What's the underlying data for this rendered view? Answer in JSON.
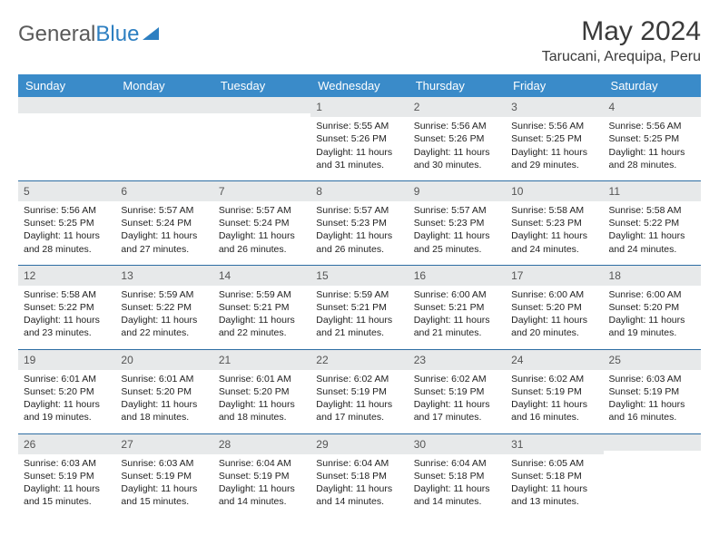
{
  "logo": {
    "part1": "General",
    "part2": "Blue"
  },
  "header": {
    "month": "May 2024",
    "location": "Tarucani, Arequipa, Peru"
  },
  "style": {
    "header_bg": "#3a8bc9",
    "header_text": "#ffffff",
    "daynum_bg": "#e7e9ea",
    "row_border": "#2d6da3",
    "body_bg": "#ffffff",
    "text_color": "#222222",
    "title_color": "#3a3a3a",
    "logo_gray": "#5a5a5a",
    "logo_blue": "#2d7fc1",
    "month_fontsize": 30,
    "location_fontsize": 16,
    "header_fontsize": 13,
    "cell_fontsize": 10.5
  },
  "weekdays": [
    "Sunday",
    "Monday",
    "Tuesday",
    "Wednesday",
    "Thursday",
    "Friday",
    "Saturday"
  ],
  "weeks": [
    [
      {
        "day": "",
        "lines": []
      },
      {
        "day": "",
        "lines": []
      },
      {
        "day": "",
        "lines": []
      },
      {
        "day": "1",
        "lines": [
          "Sunrise: 5:55 AM",
          "Sunset: 5:26 PM",
          "Daylight: 11 hours and 31 minutes."
        ]
      },
      {
        "day": "2",
        "lines": [
          "Sunrise: 5:56 AM",
          "Sunset: 5:26 PM",
          "Daylight: 11 hours and 30 minutes."
        ]
      },
      {
        "day": "3",
        "lines": [
          "Sunrise: 5:56 AM",
          "Sunset: 5:25 PM",
          "Daylight: 11 hours and 29 minutes."
        ]
      },
      {
        "day": "4",
        "lines": [
          "Sunrise: 5:56 AM",
          "Sunset: 5:25 PM",
          "Daylight: 11 hours and 28 minutes."
        ]
      }
    ],
    [
      {
        "day": "5",
        "lines": [
          "Sunrise: 5:56 AM",
          "Sunset: 5:25 PM",
          "Daylight: 11 hours and 28 minutes."
        ]
      },
      {
        "day": "6",
        "lines": [
          "Sunrise: 5:57 AM",
          "Sunset: 5:24 PM",
          "Daylight: 11 hours and 27 minutes."
        ]
      },
      {
        "day": "7",
        "lines": [
          "Sunrise: 5:57 AM",
          "Sunset: 5:24 PM",
          "Daylight: 11 hours and 26 minutes."
        ]
      },
      {
        "day": "8",
        "lines": [
          "Sunrise: 5:57 AM",
          "Sunset: 5:23 PM",
          "Daylight: 11 hours and 26 minutes."
        ]
      },
      {
        "day": "9",
        "lines": [
          "Sunrise: 5:57 AM",
          "Sunset: 5:23 PM",
          "Daylight: 11 hours and 25 minutes."
        ]
      },
      {
        "day": "10",
        "lines": [
          "Sunrise: 5:58 AM",
          "Sunset: 5:23 PM",
          "Daylight: 11 hours and 24 minutes."
        ]
      },
      {
        "day": "11",
        "lines": [
          "Sunrise: 5:58 AM",
          "Sunset: 5:22 PM",
          "Daylight: 11 hours and 24 minutes."
        ]
      }
    ],
    [
      {
        "day": "12",
        "lines": [
          "Sunrise: 5:58 AM",
          "Sunset: 5:22 PM",
          "Daylight: 11 hours and 23 minutes."
        ]
      },
      {
        "day": "13",
        "lines": [
          "Sunrise: 5:59 AM",
          "Sunset: 5:22 PM",
          "Daylight: 11 hours and 22 minutes."
        ]
      },
      {
        "day": "14",
        "lines": [
          "Sunrise: 5:59 AM",
          "Sunset: 5:21 PM",
          "Daylight: 11 hours and 22 minutes."
        ]
      },
      {
        "day": "15",
        "lines": [
          "Sunrise: 5:59 AM",
          "Sunset: 5:21 PM",
          "Daylight: 11 hours and 21 minutes."
        ]
      },
      {
        "day": "16",
        "lines": [
          "Sunrise: 6:00 AM",
          "Sunset: 5:21 PM",
          "Daylight: 11 hours and 21 minutes."
        ]
      },
      {
        "day": "17",
        "lines": [
          "Sunrise: 6:00 AM",
          "Sunset: 5:20 PM",
          "Daylight: 11 hours and 20 minutes."
        ]
      },
      {
        "day": "18",
        "lines": [
          "Sunrise: 6:00 AM",
          "Sunset: 5:20 PM",
          "Daylight: 11 hours and 19 minutes."
        ]
      }
    ],
    [
      {
        "day": "19",
        "lines": [
          "Sunrise: 6:01 AM",
          "Sunset: 5:20 PM",
          "Daylight: 11 hours and 19 minutes."
        ]
      },
      {
        "day": "20",
        "lines": [
          "Sunrise: 6:01 AM",
          "Sunset: 5:20 PM",
          "Daylight: 11 hours and 18 minutes."
        ]
      },
      {
        "day": "21",
        "lines": [
          "Sunrise: 6:01 AM",
          "Sunset: 5:20 PM",
          "Daylight: 11 hours and 18 minutes."
        ]
      },
      {
        "day": "22",
        "lines": [
          "Sunrise: 6:02 AM",
          "Sunset: 5:19 PM",
          "Daylight: 11 hours and 17 minutes."
        ]
      },
      {
        "day": "23",
        "lines": [
          "Sunrise: 6:02 AM",
          "Sunset: 5:19 PM",
          "Daylight: 11 hours and 17 minutes."
        ]
      },
      {
        "day": "24",
        "lines": [
          "Sunrise: 6:02 AM",
          "Sunset: 5:19 PM",
          "Daylight: 11 hours and 16 minutes."
        ]
      },
      {
        "day": "25",
        "lines": [
          "Sunrise: 6:03 AM",
          "Sunset: 5:19 PM",
          "Daylight: 11 hours and 16 minutes."
        ]
      }
    ],
    [
      {
        "day": "26",
        "lines": [
          "Sunrise: 6:03 AM",
          "Sunset: 5:19 PM",
          "Daylight: 11 hours and 15 minutes."
        ]
      },
      {
        "day": "27",
        "lines": [
          "Sunrise: 6:03 AM",
          "Sunset: 5:19 PM",
          "Daylight: 11 hours and 15 minutes."
        ]
      },
      {
        "day": "28",
        "lines": [
          "Sunrise: 6:04 AM",
          "Sunset: 5:19 PM",
          "Daylight: 11 hours and 14 minutes."
        ]
      },
      {
        "day": "29",
        "lines": [
          "Sunrise: 6:04 AM",
          "Sunset: 5:18 PM",
          "Daylight: 11 hours and 14 minutes."
        ]
      },
      {
        "day": "30",
        "lines": [
          "Sunrise: 6:04 AM",
          "Sunset: 5:18 PM",
          "Daylight: 11 hours and 14 minutes."
        ]
      },
      {
        "day": "31",
        "lines": [
          "Sunrise: 6:05 AM",
          "Sunset: 5:18 PM",
          "Daylight: 11 hours and 13 minutes."
        ]
      },
      {
        "day": "",
        "lines": []
      }
    ]
  ]
}
